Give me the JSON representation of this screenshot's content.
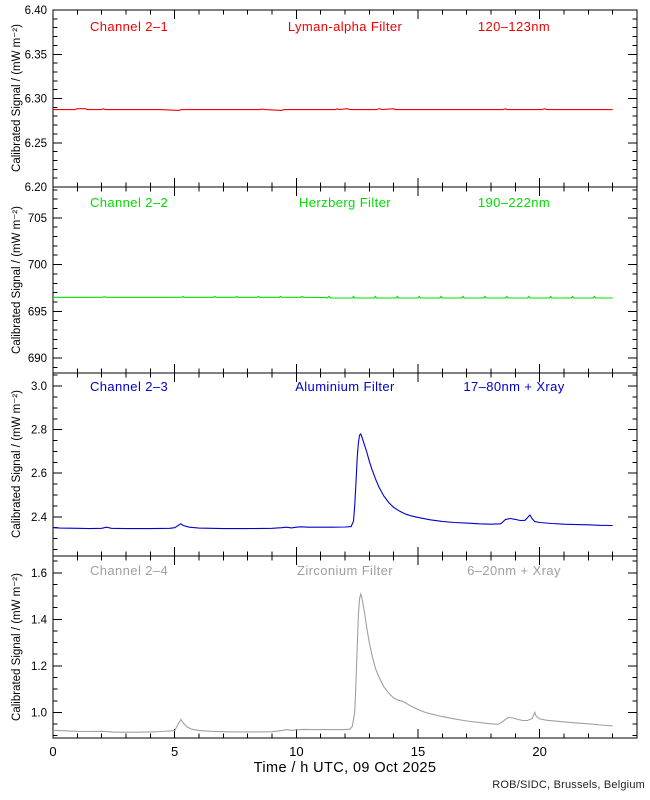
{
  "chart_data": {
    "type": "line",
    "title": "",
    "xlabel": "Time / h UTC, 09 Oct 2025",
    "y_axis_label": "Calibrated Signal / (mW m⁻²)",
    "footer": "ROB/SIDC, Brussels, Belgium",
    "grid": false,
    "legend_position": "none",
    "x_axis": {
      "xlim": [
        0,
        24
      ],
      "major_ticks": [
        0,
        5,
        10,
        15,
        20
      ],
      "major_tick_labels": [
        "0",
        "5",
        "10",
        "15",
        "20"
      ],
      "minor_step": 1,
      "data_end": 23.0
    },
    "panels": [
      {
        "channel": "Channel 2–1",
        "filter": "Lyman-alpha Filter",
        "passband": "120–123nm",
        "color": "#f40000",
        "ylim": [
          6.2,
          6.4
        ],
        "yticks": [
          6.2,
          6.25,
          6.3,
          6.35,
          6.4
        ],
        "ytick_labels": [
          "6.20",
          "6.25",
          "6.30",
          "6.35",
          "6.40"
        ],
        "minor_step": 0.01,
        "series": [
          [
            0,
            6.2875
          ],
          [
            0.9,
            6.2875
          ],
          [
            1.0,
            6.2885
          ],
          [
            1.35,
            6.2885
          ],
          [
            1.4,
            6.2875
          ],
          [
            2.0,
            6.2875
          ],
          [
            2.05,
            6.2885
          ],
          [
            2.15,
            6.2875
          ],
          [
            4.4,
            6.2875
          ],
          [
            5.15,
            6.2865
          ],
          [
            5.3,
            6.2875
          ],
          [
            8.5,
            6.2875
          ],
          [
            8.6,
            6.288
          ],
          [
            8.7,
            6.2875
          ],
          [
            9.4,
            6.2865
          ],
          [
            9.5,
            6.2875
          ],
          [
            11.6,
            6.2875
          ],
          [
            11.7,
            6.2885
          ],
          [
            11.75,
            6.2875
          ],
          [
            12.1,
            6.2885
          ],
          [
            12.2,
            6.2875
          ],
          [
            13.3,
            6.2875
          ],
          [
            13.4,
            6.2885
          ],
          [
            13.55,
            6.2875
          ],
          [
            14.0,
            6.2885
          ],
          [
            14.05,
            6.2875
          ],
          [
            18.5,
            6.2875
          ],
          [
            18.6,
            6.2885
          ],
          [
            18.65,
            6.2875
          ],
          [
            20.1,
            6.2875
          ],
          [
            20.2,
            6.2885
          ],
          [
            20.3,
            6.2875
          ],
          [
            23.0,
            6.2875
          ]
        ]
      },
      {
        "channel": "Channel 2–2",
        "filter": "Herzberg Filter",
        "passband": "190–222nm",
        "color": "#00dc00",
        "ylim": [
          688.4,
          708.3
        ],
        "yticks": [
          690,
          695,
          700,
          705
        ],
        "ytick_labels": [
          "690",
          "695",
          "700",
          "705"
        ],
        "minor_step": 1,
        "series": [
          [
            0,
            696.5
          ],
          [
            2.0,
            696.5
          ],
          [
            2.1,
            696.55
          ],
          [
            2.2,
            696.5
          ],
          [
            4.0,
            696.5
          ],
          [
            5.3,
            696.5
          ],
          [
            5.35,
            696.58
          ],
          [
            5.4,
            696.5
          ],
          [
            6.6,
            696.5
          ],
          [
            6.65,
            696.6
          ],
          [
            6.7,
            696.5
          ],
          [
            7.5,
            696.5
          ],
          [
            7.55,
            696.6
          ],
          [
            7.6,
            696.5
          ],
          [
            8.4,
            696.5
          ],
          [
            8.45,
            696.6
          ],
          [
            8.5,
            696.5
          ],
          [
            9.3,
            696.5
          ],
          [
            9.35,
            696.6
          ],
          [
            9.4,
            696.5
          ],
          [
            10.2,
            696.5
          ],
          [
            10.25,
            696.6
          ],
          [
            10.3,
            696.5
          ],
          [
            11.2,
            696.48
          ],
          [
            11.25,
            696.42
          ],
          [
            11.35,
            696.6
          ],
          [
            11.4,
            696.42
          ],
          [
            12.3,
            696.42
          ],
          [
            12.35,
            696.6
          ],
          [
            12.4,
            696.42
          ],
          [
            13.2,
            696.42
          ],
          [
            13.25,
            696.6
          ],
          [
            13.3,
            696.42
          ],
          [
            14.1,
            696.42
          ],
          [
            14.15,
            696.6
          ],
          [
            14.2,
            696.42
          ],
          [
            15.0,
            696.42
          ],
          [
            15.05,
            696.6
          ],
          [
            15.1,
            696.42
          ],
          [
            15.9,
            696.42
          ],
          [
            15.95,
            696.6
          ],
          [
            16.0,
            696.42
          ],
          [
            16.8,
            696.42
          ],
          [
            16.85,
            696.6
          ],
          [
            16.9,
            696.42
          ],
          [
            17.7,
            696.42
          ],
          [
            17.75,
            696.6
          ],
          [
            17.8,
            696.42
          ],
          [
            18.6,
            696.42
          ],
          [
            18.65,
            696.6
          ],
          [
            18.7,
            696.42
          ],
          [
            19.5,
            696.42
          ],
          [
            19.55,
            696.6
          ],
          [
            19.6,
            696.42
          ],
          [
            20.4,
            696.42
          ],
          [
            20.45,
            696.6
          ],
          [
            20.5,
            696.42
          ],
          [
            21.3,
            696.42
          ],
          [
            21.35,
            696.6
          ],
          [
            21.4,
            696.42
          ],
          [
            22.2,
            696.42
          ],
          [
            22.25,
            696.6
          ],
          [
            22.3,
            696.42
          ],
          [
            23.0,
            696.42
          ]
        ]
      },
      {
        "channel": "Channel 2–3",
        "filter": "Aluminium Filter",
        "passband": "17–80nm + Xray",
        "color": "#0000cc",
        "ylim": [
          2.22,
          3.06
        ],
        "yticks": [
          2.4,
          2.6,
          2.8,
          3.0
        ],
        "ytick_labels": [
          "2.4",
          "2.6",
          "2.8",
          "3.0"
        ],
        "minor_step": 0.05,
        "series": [
          [
            0,
            2.35
          ],
          [
            0.3,
            2.348
          ],
          [
            1.0,
            2.347
          ],
          [
            1.5,
            2.346
          ],
          [
            2.0,
            2.347
          ],
          [
            2.2,
            2.352
          ],
          [
            2.4,
            2.347
          ],
          [
            3.0,
            2.346
          ],
          [
            4.0,
            2.346
          ],
          [
            4.8,
            2.347
          ],
          [
            5.0,
            2.35
          ],
          [
            5.25,
            2.368
          ],
          [
            5.35,
            2.36
          ],
          [
            5.6,
            2.352
          ],
          [
            6.0,
            2.348
          ],
          [
            7.0,
            2.346
          ],
          [
            8.0,
            2.346
          ],
          [
            9.0,
            2.347
          ],
          [
            9.4,
            2.35
          ],
          [
            9.6,
            2.352
          ],
          [
            9.8,
            2.349
          ],
          [
            10.0,
            2.352
          ],
          [
            10.2,
            2.354
          ],
          [
            10.5,
            2.352
          ],
          [
            11.0,
            2.352
          ],
          [
            11.5,
            2.352
          ],
          [
            12.0,
            2.353
          ],
          [
            12.25,
            2.355
          ],
          [
            12.35,
            2.38
          ],
          [
            12.4,
            2.45
          ],
          [
            12.45,
            2.55
          ],
          [
            12.5,
            2.67
          ],
          [
            12.55,
            2.74
          ],
          [
            12.6,
            2.775
          ],
          [
            12.65,
            2.78
          ],
          [
            12.7,
            2.765
          ],
          [
            12.8,
            2.73
          ],
          [
            12.9,
            2.695
          ],
          [
            13.0,
            2.655
          ],
          [
            13.1,
            2.62
          ],
          [
            13.25,
            2.575
          ],
          [
            13.4,
            2.535
          ],
          [
            13.6,
            2.495
          ],
          [
            13.8,
            2.465
          ],
          [
            14.0,
            2.443
          ],
          [
            14.25,
            2.425
          ],
          [
            14.5,
            2.412
          ],
          [
            14.75,
            2.403
          ],
          [
            15.0,
            2.397
          ],
          [
            15.5,
            2.386
          ],
          [
            16.0,
            2.379
          ],
          [
            16.5,
            2.374
          ],
          [
            17.0,
            2.371
          ],
          [
            17.5,
            2.368
          ],
          [
            18.0,
            2.366
          ],
          [
            18.4,
            2.368
          ],
          [
            18.6,
            2.388
          ],
          [
            18.8,
            2.392
          ],
          [
            19.0,
            2.388
          ],
          [
            19.2,
            2.383
          ],
          [
            19.4,
            2.384
          ],
          [
            19.6,
            2.408
          ],
          [
            19.7,
            2.39
          ],
          [
            19.8,
            2.378
          ],
          [
            20.0,
            2.374
          ],
          [
            20.5,
            2.369
          ],
          [
            21.0,
            2.366
          ],
          [
            21.5,
            2.364
          ],
          [
            22.0,
            2.363
          ],
          [
            22.5,
            2.361
          ],
          [
            23.0,
            2.36
          ]
        ]
      },
      {
        "channel": "Channel 2–4",
        "filter": "Zirconium Filter",
        "passband": "6–20nm + Xray",
        "color": "#a0a0a0",
        "ylim": [
          0.89,
          1.672
        ],
        "yticks": [
          1.0,
          1.2,
          1.4,
          1.6
        ],
        "ytick_labels": [
          "1.0",
          "1.2",
          "1.4",
          "1.6"
        ],
        "minor_step": 0.05,
        "series": [
          [
            0,
            0.923
          ],
          [
            0.5,
            0.921
          ],
          [
            1.0,
            0.919
          ],
          [
            1.5,
            0.918
          ],
          [
            2.0,
            0.919
          ],
          [
            2.3,
            0.917
          ],
          [
            2.5,
            0.915
          ],
          [
            3.0,
            0.915
          ],
          [
            3.5,
            0.915
          ],
          [
            4.0,
            0.916
          ],
          [
            4.5,
            0.918
          ],
          [
            5.0,
            0.922
          ],
          [
            5.25,
            0.97
          ],
          [
            5.35,
            0.955
          ],
          [
            5.5,
            0.938
          ],
          [
            5.7,
            0.928
          ],
          [
            6.0,
            0.922
          ],
          [
            6.5,
            0.919
          ],
          [
            7.0,
            0.917
          ],
          [
            7.5,
            0.916
          ],
          [
            8.0,
            0.916
          ],
          [
            8.5,
            0.916
          ],
          [
            9.0,
            0.917
          ],
          [
            9.4,
            0.922
          ],
          [
            9.6,
            0.926
          ],
          [
            9.8,
            0.923
          ],
          [
            10.0,
            0.925
          ],
          [
            10.3,
            0.927
          ],
          [
            10.7,
            0.926
          ],
          [
            11.0,
            0.926
          ],
          [
            11.5,
            0.926
          ],
          [
            12.0,
            0.926
          ],
          [
            12.2,
            0.928
          ],
          [
            12.3,
            0.94
          ],
          [
            12.4,
            1.0
          ],
          [
            12.45,
            1.12
          ],
          [
            12.5,
            1.28
          ],
          [
            12.55,
            1.42
          ],
          [
            12.6,
            1.49
          ],
          [
            12.65,
            1.508
          ],
          [
            12.7,
            1.49
          ],
          [
            12.8,
            1.43
          ],
          [
            12.9,
            1.36
          ],
          [
            13.0,
            1.3
          ],
          [
            13.1,
            1.25
          ],
          [
            13.25,
            1.19
          ],
          [
            13.4,
            1.15
          ],
          [
            13.6,
            1.11
          ],
          [
            13.8,
            1.082
          ],
          [
            14.0,
            1.062
          ],
          [
            14.2,
            1.052
          ],
          [
            14.35,
            1.048
          ],
          [
            14.5,
            1.04
          ],
          [
            14.7,
            1.028
          ],
          [
            15.0,
            1.012
          ],
          [
            15.3,
            1.0
          ],
          [
            15.6,
            0.992
          ],
          [
            16.0,
            0.982
          ],
          [
            16.5,
            0.972
          ],
          [
            17.0,
            0.963
          ],
          [
            17.5,
            0.957
          ],
          [
            18.0,
            0.951
          ],
          [
            18.3,
            0.949
          ],
          [
            18.5,
            0.962
          ],
          [
            18.7,
            0.978
          ],
          [
            18.9,
            0.976
          ],
          [
            19.1,
            0.97
          ],
          [
            19.3,
            0.965
          ],
          [
            19.5,
            0.965
          ],
          [
            19.7,
            0.975
          ],
          [
            19.8,
            1.0
          ],
          [
            19.85,
            0.985
          ],
          [
            20.0,
            0.972
          ],
          [
            20.3,
            0.966
          ],
          [
            20.7,
            0.962
          ],
          [
            21.0,
            0.959
          ],
          [
            21.5,
            0.955
          ],
          [
            22.0,
            0.951
          ],
          [
            22.5,
            0.946
          ],
          [
            23.0,
            0.942
          ]
        ]
      }
    ]
  }
}
